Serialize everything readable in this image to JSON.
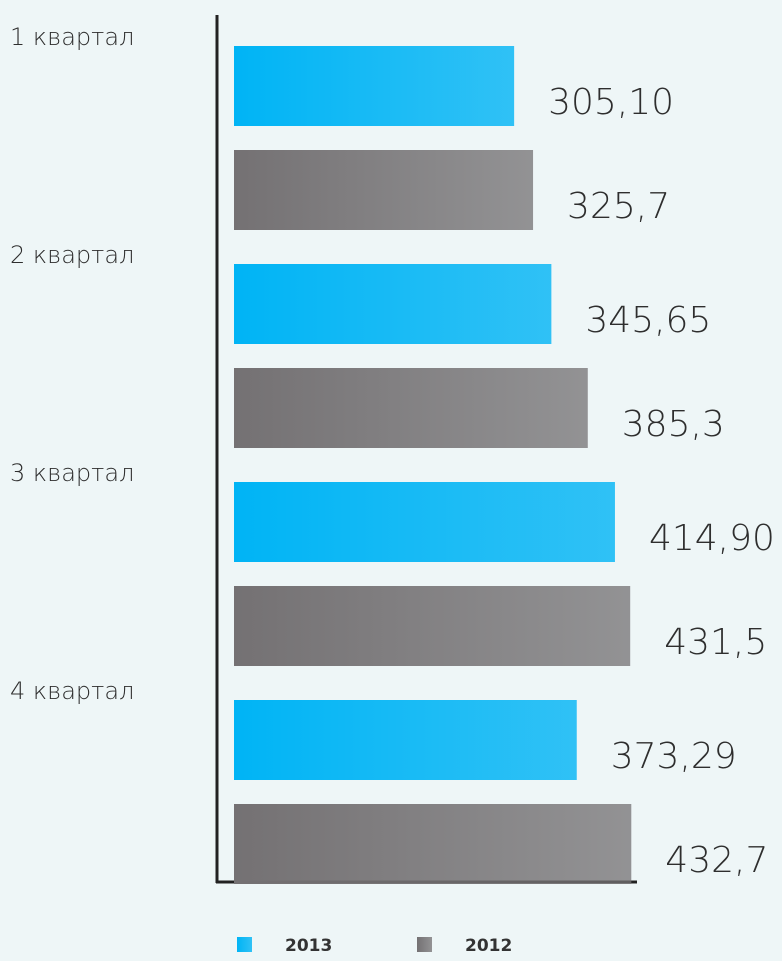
{
  "chart_data": {
    "type": "hbar",
    "categories": [
      "1 квартал",
      "2 квартал",
      "3 квартал",
      "4 квартал"
    ],
    "series": [
      {
        "name": "2013",
        "color": "#00b4f5",
        "values": [
          305.1,
          345.65,
          414.9,
          373.29
        ],
        "value_labels": [
          "305,10",
          "345,65",
          "414,90",
          "373,29"
        ]
      },
      {
        "name": "2012",
        "color": "#747173",
        "values": [
          325.7,
          385.3,
          431.5,
          432.7
        ],
        "value_labels": [
          "325,7",
          "385,3",
          "431,5",
          "432,7"
        ]
      }
    ],
    "xlim": [
      0,
      440
    ]
  }
}
